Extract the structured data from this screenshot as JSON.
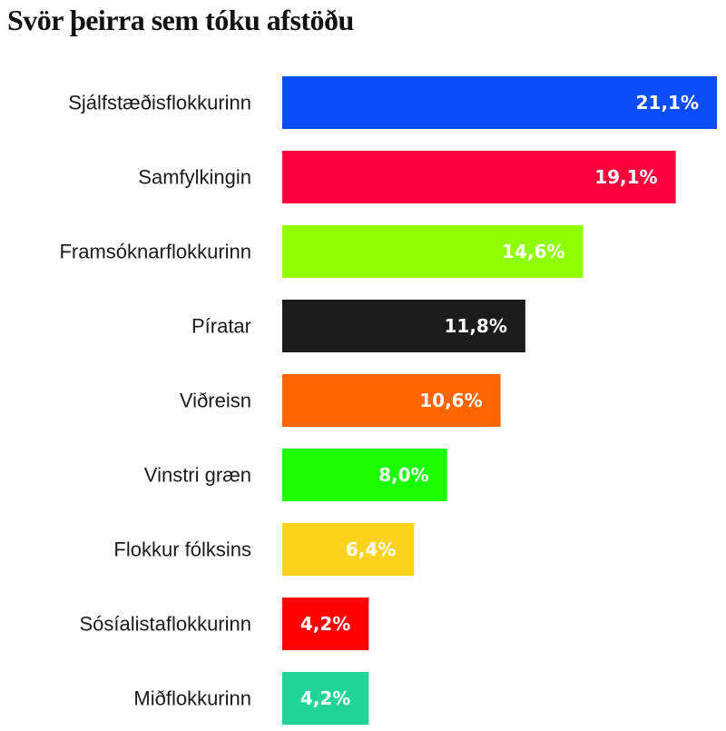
{
  "title": "Svör þeirra sem tóku afstöðu",
  "chart_data": {
    "type": "bar",
    "orientation": "horizontal",
    "title": "Svör þeirra sem tóku afstöðu",
    "xlabel": "",
    "ylabel": "",
    "xlim": [
      0,
      21.1
    ],
    "grid": false,
    "legend": "none",
    "categories": [
      "Sjálfstæðisflokkurinn",
      "Samfylkingin",
      "Framsóknarflokkurinn",
      "Píratar",
      "Viðreisn",
      "Vinstri græn",
      "Flokkur fólksins",
      "Sósíalistaflokkurinn",
      "Miðflokkurinn"
    ],
    "values": [
      21.1,
      19.1,
      14.6,
      11.8,
      10.6,
      8.0,
      6.4,
      4.2,
      4.2
    ],
    "value_labels": [
      "21,1%",
      "19,1%",
      "14,6%",
      "11,8%",
      "10,6%",
      "8,0%",
      "6,4%",
      "4,2%",
      "4,2%"
    ],
    "colors": [
      "#0a4cf5",
      "#ff003c",
      "#8fff00",
      "#1c1c1c",
      "#ff6600",
      "#19ff00",
      "#ffd21e",
      "#ff0000",
      "#1fd496"
    ]
  }
}
